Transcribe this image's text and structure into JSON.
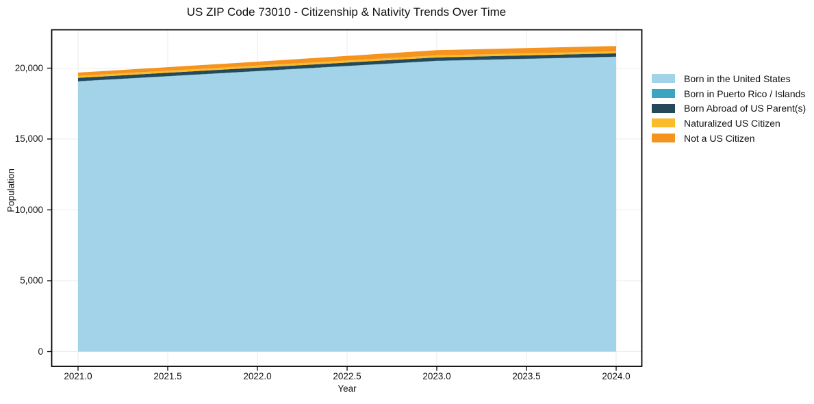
{
  "figure": {
    "title": "US ZIP Code 73010 - Citizenship & Nativity Trends Over Time",
    "xlabel": "Year",
    "ylabel": "Population"
  },
  "chart_data": {
    "type": "area",
    "stacked": true,
    "title": "US ZIP Code 73010 - Citizenship & Nativity Trends Over Time",
    "xlabel": "Year",
    "ylabel": "Population",
    "x": [
      2021,
      2022,
      2023,
      2024
    ],
    "series": [
      {
        "name": "Born in the United States",
        "color": "#A3D3E9",
        "values": [
          19060,
          19780,
          20500,
          20790
        ]
      },
      {
        "name": "Born in Puerto Rico / Islands",
        "color": "#3BA4C1",
        "values": [
          15,
          15,
          15,
          15
        ]
      },
      {
        "name": "Born Abroad of US Parent(s)",
        "color": "#25495B",
        "values": [
          240,
          240,
          240,
          240
        ]
      },
      {
        "name": "Naturalized US Citizen",
        "color": "#FBBC2C",
        "values": [
          145,
          145,
          145,
          145
        ]
      },
      {
        "name": "Not a US Citizen",
        "color": "#F6931E",
        "values": [
          225,
          275,
          370,
          370
        ]
      }
    ],
    "xticks": {
      "values": [
        2021.0,
        2021.5,
        2022.0,
        2022.5,
        2023.0,
        2023.5,
        2024.0
      ],
      "labels": [
        "2021.0",
        "2021.5",
        "2022.0",
        "2022.5",
        "2023.0",
        "2023.5",
        "2024.0"
      ]
    },
    "yticks": {
      "values": [
        0,
        5000,
        10000,
        15000,
        20000
      ],
      "labels": [
        "0",
        "5,000",
        "10,000",
        "15,000",
        "20,000"
      ]
    },
    "ylim": [
      0,
      20000
    ],
    "grid": true,
    "legend_position": "right-outside"
  },
  "colors": {
    "grid": "#ebebeb",
    "spine": "#000000",
    "tick": "#000000"
  }
}
